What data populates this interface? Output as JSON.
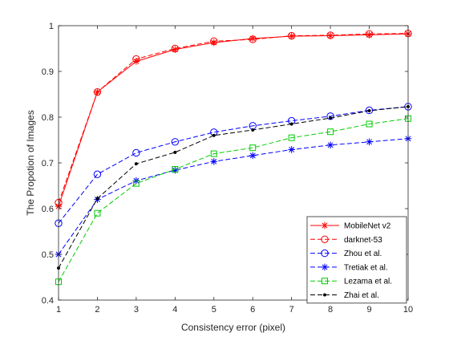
{
  "chart_data": {
    "type": "line",
    "title": "",
    "xlabel": "Consistency error (pixel)",
    "ylabel": "The Propotion of Images",
    "xlim": [
      1,
      10
    ],
    "ylim": [
      0.4,
      1.0
    ],
    "x": [
      1,
      2,
      3,
      4,
      5,
      6,
      7,
      8,
      9,
      10
    ],
    "xticks": [
      "1",
      "2",
      "3",
      "4",
      "5",
      "6",
      "7",
      "8",
      "9",
      "10"
    ],
    "yticks": [
      "0.4",
      "0.5",
      "0.6",
      "0.7",
      "0.8",
      "0.9",
      "1"
    ],
    "grid": false,
    "legend_position": "bottom-right",
    "series": [
      {
        "name": "MobileNet v2",
        "color": "#ff0000",
        "marker": "star",
        "dash": "solid",
        "values": [
          0.605,
          0.855,
          0.922,
          0.948,
          0.963,
          0.972,
          0.977,
          0.978,
          0.98,
          0.982
        ]
      },
      {
        "name": "darknet-53",
        "color": "#ff0000",
        "marker": "circle",
        "dash": "dashed",
        "values": [
          0.613,
          0.855,
          0.927,
          0.95,
          0.966,
          0.97,
          0.978,
          0.979,
          0.982,
          0.983
        ]
      },
      {
        "name": "Zhou et al.",
        "color": "#0000ff",
        "marker": "circle",
        "dash": "dashed",
        "values": [
          0.568,
          0.675,
          0.722,
          0.746,
          0.767,
          0.781,
          0.792,
          0.802,
          0.815,
          0.823
        ]
      },
      {
        "name": "Tretiak et al.",
        "color": "#0000ff",
        "marker": "star",
        "dash": "dashed",
        "values": [
          0.5,
          0.62,
          0.661,
          0.684,
          0.703,
          0.716,
          0.729,
          0.739,
          0.746,
          0.753
        ]
      },
      {
        "name": "Lezama et al.",
        "color": "#00cc00",
        "marker": "square",
        "dash": "dashed",
        "values": [
          0.44,
          0.59,
          0.655,
          0.686,
          0.72,
          0.733,
          0.755,
          0.768,
          0.785,
          0.797
        ]
      },
      {
        "name": "Zhai et al.",
        "color": "#000000",
        "marker": "dot",
        "dash": "dashed",
        "values": [
          0.47,
          0.622,
          0.698,
          0.723,
          0.76,
          0.772,
          0.785,
          0.798,
          0.814,
          0.823
        ]
      }
    ]
  }
}
